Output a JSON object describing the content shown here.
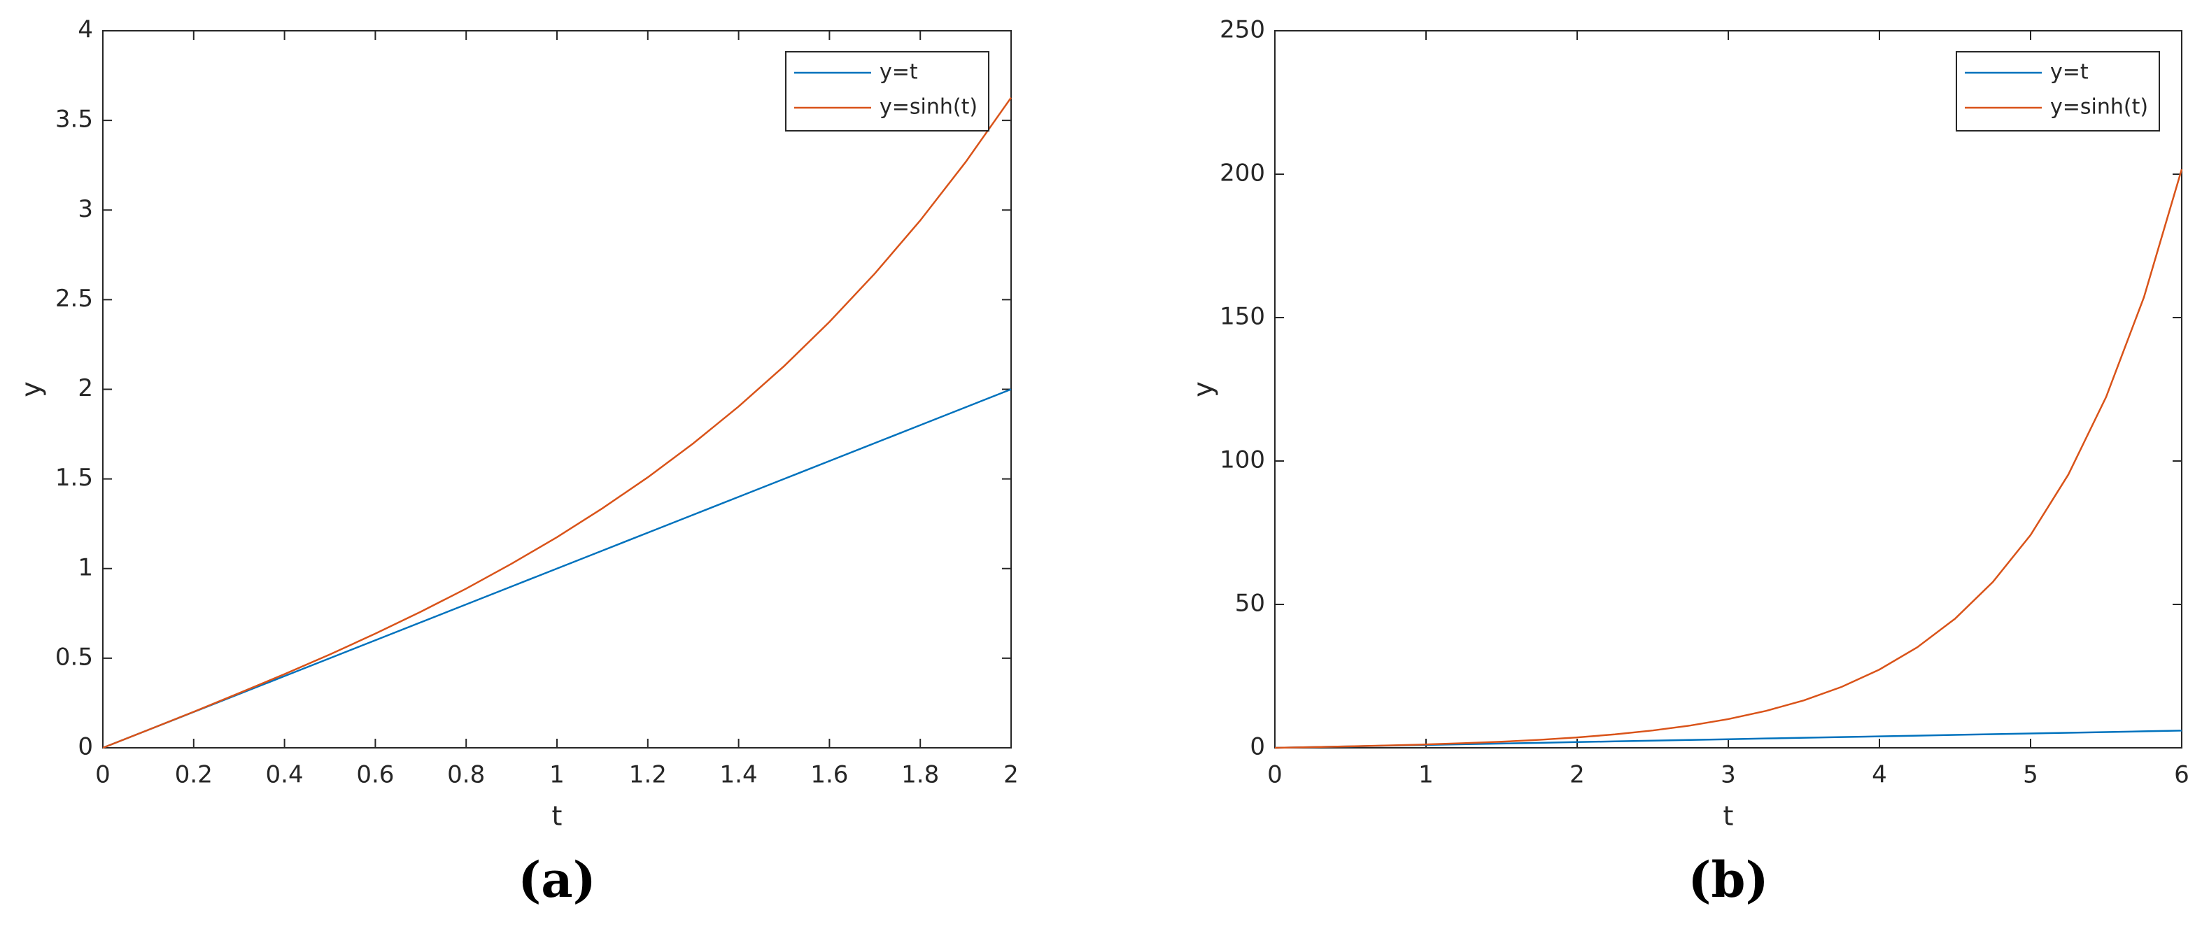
{
  "chart_data": [
    {
      "type": "line",
      "caption": "(a)",
      "x_label": "t",
      "y_label": "y",
      "x": [
        0,
        0.1,
        0.2,
        0.3,
        0.4,
        0.5,
        0.6,
        0.7,
        0.8,
        0.9,
        1.0,
        1.1,
        1.2,
        1.3,
        1.4,
        1.5,
        1.6,
        1.7,
        1.8,
        1.9,
        2.0
      ],
      "series": [
        {
          "name": "y=t",
          "color": "#0072bd",
          "values": [
            0,
            0.1,
            0.2,
            0.3,
            0.4,
            0.5,
            0.6,
            0.7,
            0.8,
            0.9,
            1.0,
            1.1,
            1.2,
            1.3,
            1.4,
            1.5,
            1.6,
            1.7,
            1.8,
            1.9,
            2.0
          ]
        },
        {
          "name": "y=sinh(t)",
          "color": "#d95319",
          "values": [
            0,
            0.1,
            0.201,
            0.305,
            0.411,
            0.521,
            0.637,
            0.759,
            0.888,
            1.027,
            1.175,
            1.336,
            1.509,
            1.698,
            1.904,
            2.129,
            2.376,
            2.646,
            2.942,
            3.268,
            3.627
          ]
        }
      ],
      "xlim": [
        0,
        2
      ],
      "xticks": [
        0,
        0.2,
        0.4,
        0.6,
        0.8,
        1,
        1.2,
        1.4,
        1.6,
        1.8,
        2
      ],
      "ylim": [
        0,
        4
      ],
      "yticks": [
        0,
        0.5,
        1,
        1.5,
        2,
        2.5,
        3,
        3.5,
        4
      ],
      "grid": false,
      "legend": "northeast"
    },
    {
      "type": "line",
      "caption": "(b)",
      "x_label": "t",
      "y_label": "y",
      "x": [
        0,
        0.25,
        0.5,
        0.75,
        1,
        1.25,
        1.5,
        1.75,
        2,
        2.25,
        2.5,
        2.75,
        3,
        3.25,
        3.5,
        3.75,
        4,
        4.25,
        4.5,
        4.75,
        5,
        5.25,
        5.5,
        5.75,
        6
      ],
      "series": [
        {
          "name": "y=t",
          "color": "#0072bd",
          "values": [
            0,
            0.25,
            0.5,
            0.75,
            1,
            1.25,
            1.5,
            1.75,
            2,
            2.25,
            2.5,
            2.75,
            3,
            3.25,
            3.5,
            3.75,
            4,
            4.25,
            4.5,
            4.75,
            5,
            5.25,
            5.5,
            5.75,
            6
          ]
        },
        {
          "name": "y=sinh(t)",
          "color": "#d95319",
          "values": [
            0,
            0.253,
            0.521,
            0.822,
            1.175,
            1.602,
            2.129,
            2.79,
            3.627,
            4.691,
            6.05,
            7.789,
            10.018,
            12.876,
            16.543,
            21.249,
            27.29,
            35.046,
            45.003,
            57.79,
            74.203,
            95.281,
            122.344,
            157.086,
            201.713
          ]
        }
      ],
      "xlim": [
        0,
        6
      ],
      "xticks": [
        0,
        1,
        2,
        3,
        4,
        5,
        6
      ],
      "ylim": [
        0,
        250
      ],
      "yticks": [
        0,
        50,
        100,
        150,
        200,
        250
      ],
      "grid": false,
      "legend": "northeast"
    }
  ]
}
